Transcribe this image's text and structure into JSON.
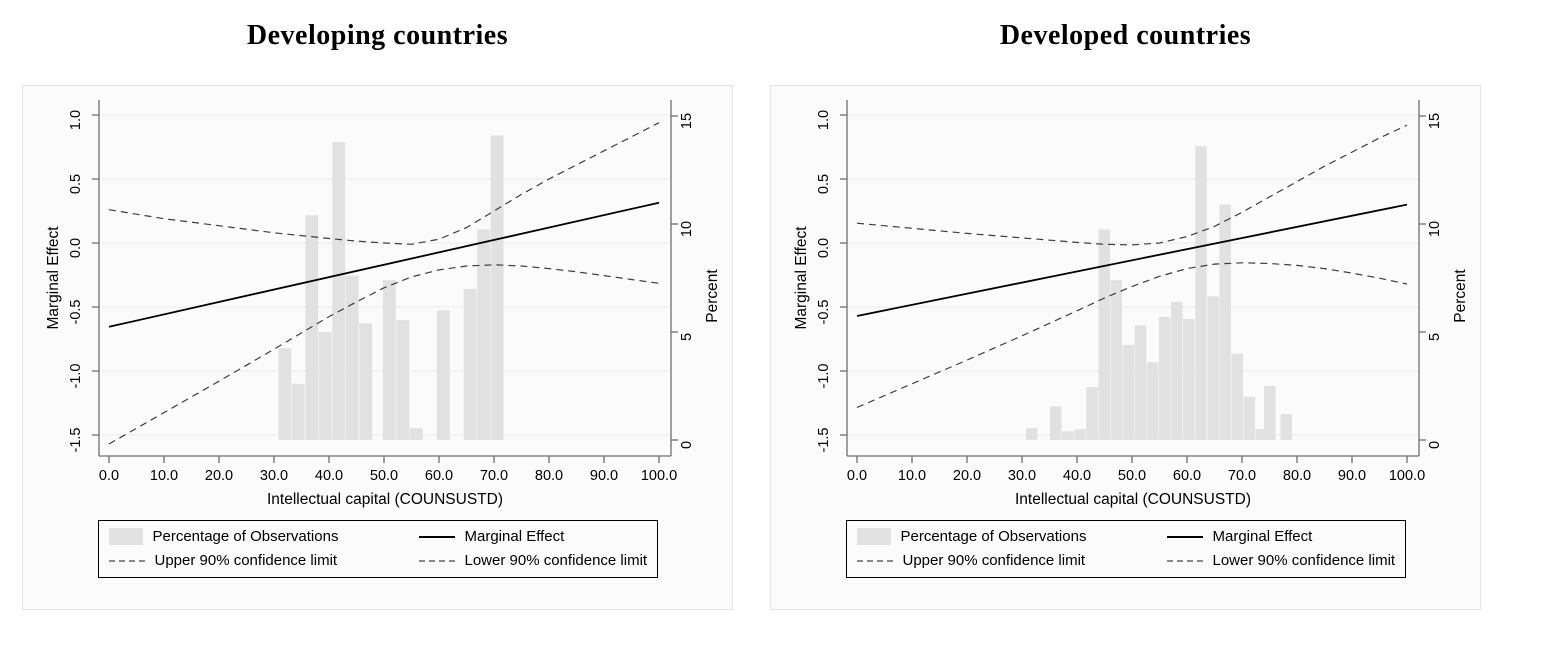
{
  "colors": {
    "bar_fill": "#e1e1e1",
    "solid_line": "#000000",
    "ci_line": "#3d3d3d",
    "grid_line": "#e4eef1",
    "axis_line": "#707070",
    "text": "#000000",
    "panel_bg": "#fbfbfb"
  },
  "legend": {
    "items": [
      {
        "swatch": "gray-rect",
        "label": "Percentage of Observations"
      },
      {
        "swatch": "solid-line",
        "label": "Marginal Effect"
      },
      {
        "swatch": "dashed-line",
        "label": "Upper 90% confidence limit"
      },
      {
        "swatch": "dashed-line",
        "label": "Lower 90% confidence limit"
      }
    ]
  },
  "panels": [
    {
      "title": "Developing countries",
      "x_axis": {
        "title": "Intellectual capital (COUNSUSTD)",
        "tick_labels": [
          "0.0",
          "10.0",
          "20.0",
          "30.0",
          "40.0",
          "50.0",
          "60.0",
          "70.0",
          "80.0",
          "90.0",
          "100.0"
        ],
        "tick_values": [
          0,
          10,
          20,
          30,
          40,
          50,
          60,
          70,
          80,
          90,
          100
        ]
      },
      "y_left": {
        "title": "Marginal Effect",
        "tick_labels": [
          "1.0",
          "0.5",
          "0.0",
          "-0.5",
          "-1.0",
          "-1.5"
        ],
        "tick_values": [
          1.0,
          0.5,
          0.0,
          -0.5,
          -1.0,
          -1.5
        ]
      },
      "y_right": {
        "title": "Percent",
        "tick_labels": [
          "15",
          "10",
          "5",
          "0"
        ],
        "tick_values": [
          15,
          10,
          5,
          0
        ]
      },
      "chart_data": {
        "type": "bar+line",
        "xlabel": "Intellectual capital (COUNSUSTD)",
        "ylabel_left": "Marginal Effect",
        "ylabel_right": "Percent",
        "xlim": [
          0,
          100
        ],
        "ylim_left": [
          -1.65,
          1.1
        ],
        "ylim_right": [
          0,
          15
        ],
        "grid": "horizontal",
        "legend_position": "bottom",
        "histogram": {
          "name": "Percentage of Observations",
          "bin_width": 2.45,
          "bars": [
            {
              "x": 30.8,
              "pct": 4.25
            },
            {
              "x": 33.25,
              "pct": 2.6
            },
            {
              "x": 35.7,
              "pct": 10.4
            },
            {
              "x": 38.15,
              "pct": 5.0
            },
            {
              "x": 40.6,
              "pct": 13.8
            },
            {
              "x": 43.05,
              "pct": 7.6
            },
            {
              "x": 45.5,
              "pct": 5.4
            },
            {
              "x": 49.8,
              "pct": 7.4
            },
            {
              "x": 52.25,
              "pct": 5.55
            },
            {
              "x": 54.7,
              "pct": 0.55
            },
            {
              "x": 59.6,
              "pct": 6.0
            },
            {
              "x": 64.5,
              "pct": 7.0
            },
            {
              "x": 66.95,
              "pct": 9.75
            },
            {
              "x": 69.4,
              "pct": 14.1
            }
          ]
        },
        "series": [
          {
            "name": "Marginal Effect",
            "style": "solid",
            "x": [
              0,
              100
            ],
            "y": [
              -0.655,
              0.315
            ]
          },
          {
            "name": "Upper 90% confidence limit",
            "style": "dashed",
            "x": [
              0,
              10,
              20,
              30,
              40,
              45,
              50,
              55,
              60,
              65,
              70,
              75,
              80,
              85,
              90,
              95,
              100
            ],
            "y": [
              0.26,
              0.19,
              0.135,
              0.08,
              0.035,
              0.015,
              0.0,
              -0.01,
              0.03,
              0.12,
              0.25,
              0.38,
              0.5,
              0.61,
              0.72,
              0.83,
              0.94
            ]
          },
          {
            "name": "Lower 90% confidence limit",
            "style": "dashed",
            "x": [
              0,
              10,
              20,
              30,
              40,
              45,
              50,
              55,
              60,
              65,
              70,
              75,
              80,
              85,
              90,
              95,
              100
            ],
            "y": [
              -1.57,
              -1.325,
              -1.08,
              -0.83,
              -0.575,
              -0.46,
              -0.35,
              -0.265,
              -0.21,
              -0.18,
              -0.17,
              -0.18,
              -0.2,
              -0.225,
              -0.255,
              -0.285,
              -0.315
            ]
          }
        ]
      }
    },
    {
      "title": "Developed countries",
      "x_axis": {
        "title": "Intellectual capital (COUNSUSTD)",
        "tick_labels": [
          "0.0",
          "10.0",
          "20.0",
          "30.0",
          "40.0",
          "50.0",
          "60.0",
          "70.0",
          "80.0",
          "90.0",
          "100.0"
        ],
        "tick_values": [
          0,
          10,
          20,
          30,
          40,
          50,
          60,
          70,
          80,
          90,
          100
        ]
      },
      "y_left": {
        "title": "Marginal Effect",
        "tick_labels": [
          "1.0",
          "0.5",
          "0.0",
          "-0.5",
          "-1.0",
          "-1.5"
        ],
        "tick_values": [
          1.0,
          0.5,
          0.0,
          -0.5,
          -1.0,
          -1.5
        ]
      },
      "y_right": {
        "title": "Percent",
        "tick_labels": [
          "15",
          "10",
          "5",
          "0"
        ],
        "tick_values": [
          15,
          10,
          5,
          0
        ]
      },
      "chart_data": {
        "type": "bar+line",
        "xlabel": "Intellectual capital (COUNSUSTD)",
        "ylabel_left": "Marginal Effect",
        "ylabel_right": "Percent",
        "xlim": [
          0,
          100
        ],
        "ylim_left": [
          -1.65,
          1.1
        ],
        "ylim_right": [
          0,
          15
        ],
        "grid": "horizontal",
        "legend_position": "bottom",
        "histogram": {
          "name": "Percentage of Observations",
          "bin_width": 2.2,
          "bars": [
            {
              "x": 30.7,
              "pct": 0.55
            },
            {
              "x": 35.1,
              "pct": 1.55
            },
            {
              "x": 37.3,
              "pct": 0.4
            },
            {
              "x": 39.5,
              "pct": 0.5
            },
            {
              "x": 41.7,
              "pct": 2.45
            },
            {
              "x": 43.9,
              "pct": 9.75
            },
            {
              "x": 46.1,
              "pct": 7.4
            },
            {
              "x": 48.3,
              "pct": 4.4
            },
            {
              "x": 50.5,
              "pct": 5.3
            },
            {
              "x": 52.7,
              "pct": 3.6
            },
            {
              "x": 54.9,
              "pct": 5.7
            },
            {
              "x": 57.1,
              "pct": 6.4
            },
            {
              "x": 59.3,
              "pct": 5.6
            },
            {
              "x": 61.5,
              "pct": 13.6
            },
            {
              "x": 63.7,
              "pct": 6.65
            },
            {
              "x": 65.9,
              "pct": 10.9
            },
            {
              "x": 68.1,
              "pct": 4.0
            },
            {
              "x": 70.3,
              "pct": 2.0
            },
            {
              "x": 72.5,
              "pct": 0.5
            },
            {
              "x": 74.0,
              "pct": 2.5
            },
            {
              "x": 77.0,
              "pct": 1.2
            }
          ]
        },
        "series": [
          {
            "name": "Marginal Effect",
            "style": "solid",
            "x": [
              0,
              100
            ],
            "y": [
              -0.57,
              0.3
            ]
          },
          {
            "name": "Upper 90% confidence limit",
            "style": "dashed",
            "x": [
              0,
              10,
              20,
              30,
              40,
              45,
              50,
              55,
              60,
              65,
              70,
              75,
              80,
              85,
              90,
              95,
              100
            ],
            "y": [
              0.155,
              0.115,
              0.075,
              0.04,
              0.005,
              -0.01,
              -0.015,
              0.0,
              0.05,
              0.13,
              0.24,
              0.36,
              0.48,
              0.6,
              0.71,
              0.82,
              0.92
            ]
          },
          {
            "name": "Lower 90% confidence limit",
            "style": "dashed",
            "x": [
              0,
              10,
              20,
              30,
              40,
              45,
              50,
              55,
              60,
              65,
              70,
              75,
              80,
              85,
              90,
              95,
              100
            ],
            "y": [
              -1.285,
              -1.1,
              -0.915,
              -0.725,
              -0.53,
              -0.43,
              -0.34,
              -0.26,
              -0.2,
              -0.165,
              -0.155,
              -0.16,
              -0.175,
              -0.2,
              -0.235,
              -0.275,
              -0.32
            ]
          }
        ]
      }
    }
  ]
}
